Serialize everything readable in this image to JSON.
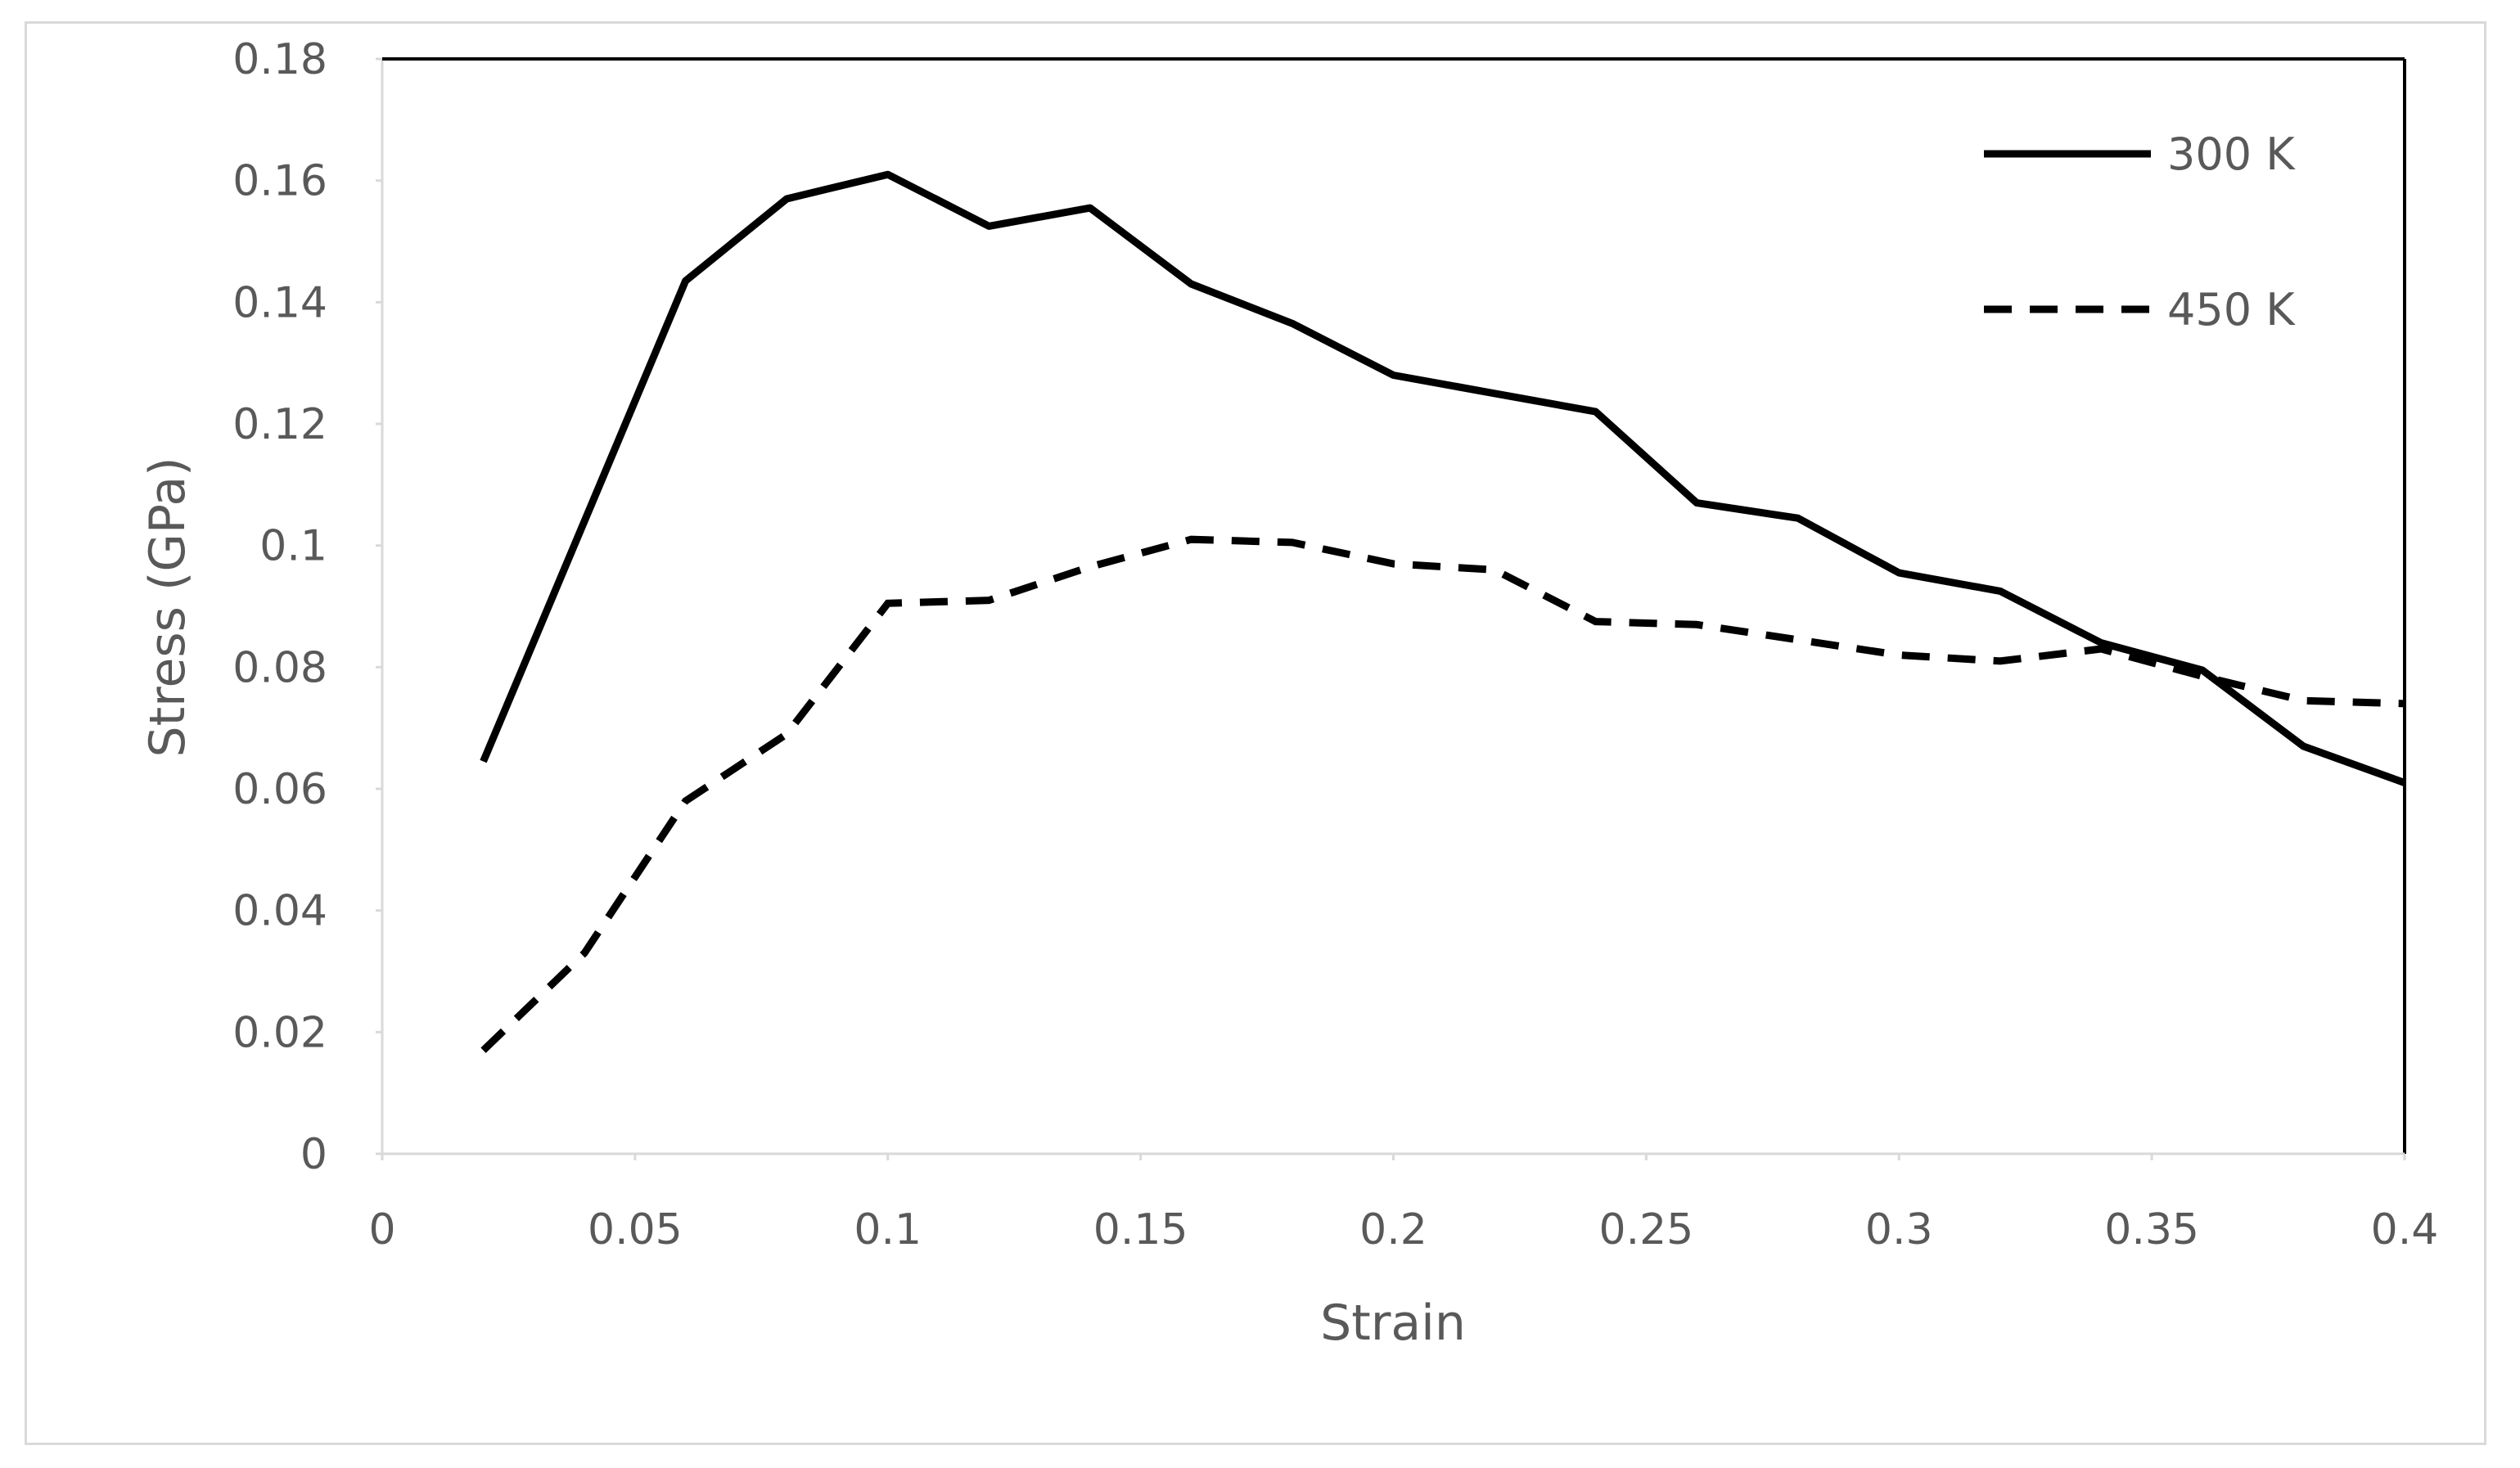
{
  "chart_data": {
    "type": "line",
    "title": "",
    "xlabel": "Strain",
    "ylabel": "Stress (GPa)",
    "xlim": [
      0,
      0.4
    ],
    "ylim": [
      0,
      0.18
    ],
    "xticks": [
      "0",
      "0.05",
      "0.1",
      "0.15",
      "0.2",
      "0.25",
      "0.3",
      "0.35",
      "0.4"
    ],
    "yticks": [
      "0",
      "0.02",
      "0.04",
      "0.06",
      "0.08",
      "0.1",
      "0.12",
      "0.14",
      "0.16",
      "0.18"
    ],
    "grid": false,
    "legend_position": "top-right",
    "x": [
      0.02,
      0.04,
      0.06,
      0.08,
      0.1,
      0.12,
      0.14,
      0.16,
      0.18,
      0.2,
      0.22,
      0.24,
      0.26,
      0.28,
      0.3,
      0.32,
      0.34,
      0.36,
      0.38,
      0.4
    ],
    "series": [
      {
        "name": "300 K",
        "style": "solid",
        "color": "#000000",
        "values": [
          0.0645,
          0.104,
          0.1435,
          0.157,
          0.161,
          0.1525,
          0.1555,
          0.143,
          0.1365,
          0.128,
          0.125,
          0.122,
          0.107,
          0.1045,
          0.0955,
          0.0925,
          0.084,
          0.0795,
          0.067,
          0.061
        ]
      },
      {
        "name": "450 K",
        "style": "dashed",
        "color": "#000000",
        "values": [
          0.017,
          0.033,
          0.058,
          0.069,
          0.0905,
          0.091,
          0.0965,
          0.101,
          0.1005,
          0.097,
          0.096,
          0.0875,
          0.087,
          0.0845,
          0.082,
          0.081,
          0.083,
          0.0785,
          0.0745,
          0.074
        ]
      }
    ]
  }
}
